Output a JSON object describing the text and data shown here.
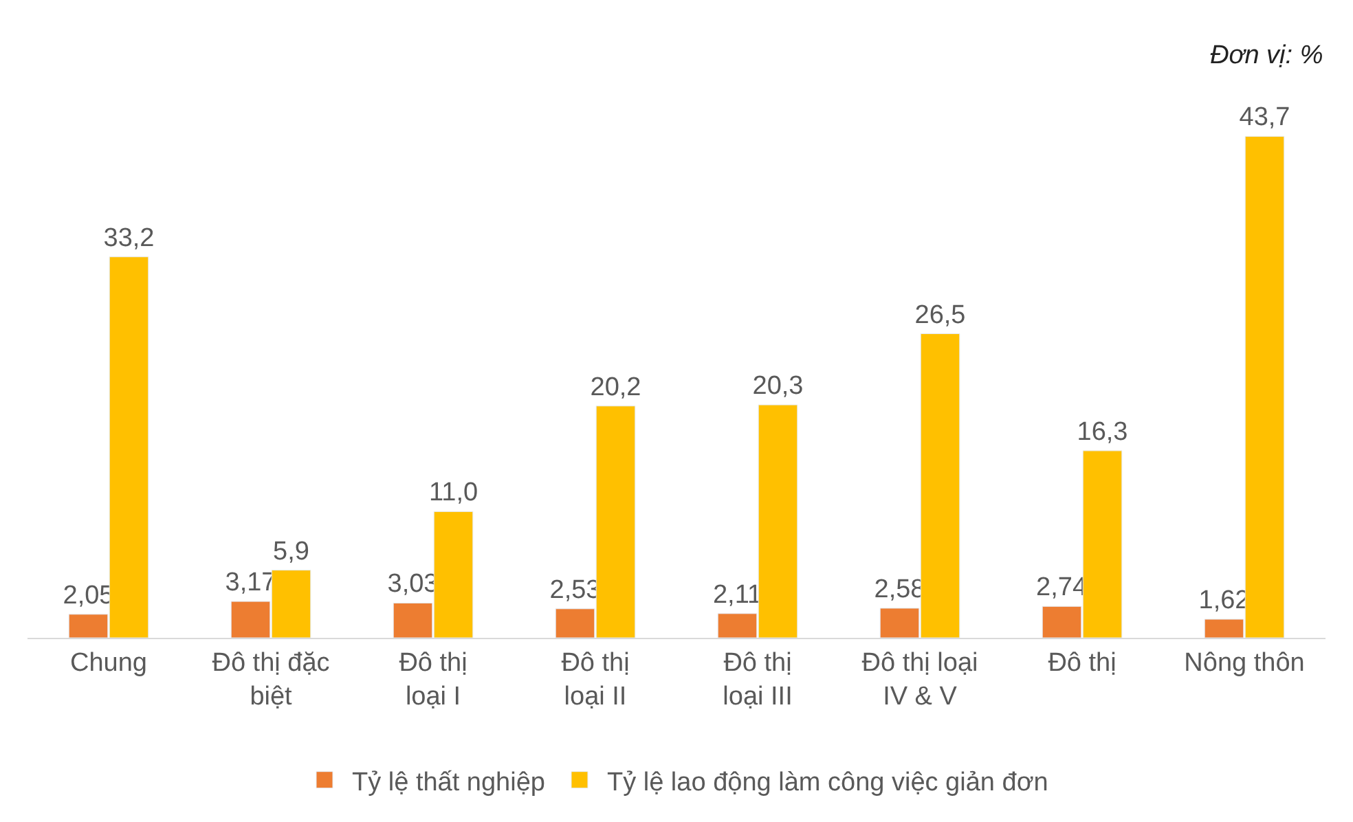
{
  "chart_data": {
    "type": "bar",
    "categories": [
      "Chung",
      "Đô thị đặc\nbiệt",
      "Đô thị\nloại I",
      "Đô thị\nloại II",
      "Đô thị\nloại III",
      "Đô thị loại\nIV & V",
      "Đô thị",
      "Nông thôn"
    ],
    "series": [
      {
        "name": "Tỷ lệ thất nghiệp",
        "color": "#ed7d31",
        "values": [
          2.05,
          3.17,
          3.03,
          2.53,
          2.11,
          2.58,
          2.74,
          1.62
        ],
        "value_labels": [
          "2,05",
          "3,17",
          "3,03",
          "2,53",
          "2,11",
          "2,58",
          "2,74",
          "1,62"
        ]
      },
      {
        "name": "Tỷ lệ lao động làm công việc giản đơn",
        "color": "#ffc000",
        "values": [
          33.2,
          5.9,
          11.0,
          20.2,
          20.3,
          26.5,
          16.3,
          43.7
        ],
        "value_labels": [
          "33,2",
          "5,9",
          "11,0",
          "20,2",
          "20,3",
          "26,5",
          "16,3",
          "43,7"
        ]
      }
    ],
    "annotations": [
      "Đơn vị: %"
    ],
    "legend": "bottom"
  }
}
